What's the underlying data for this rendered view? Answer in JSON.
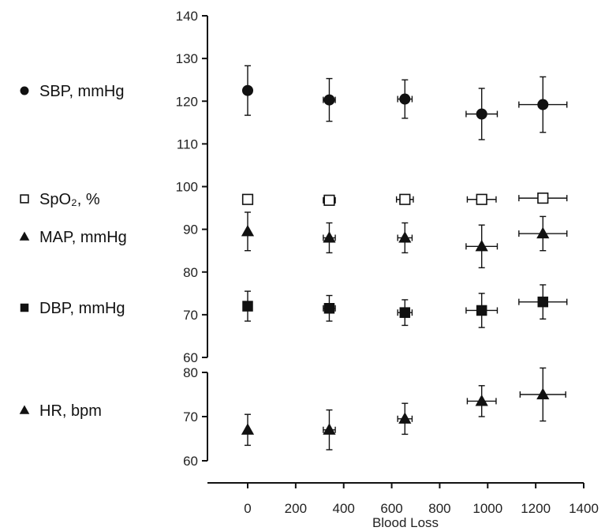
{
  "chart_data": {
    "type": "scatter",
    "title": "",
    "xlabel": "Blood Loss",
    "x_ticks": [
      "0",
      "200",
      "400",
      "600",
      "800",
      "1000",
      "1200",
      "1400"
    ],
    "xlim": [
      0,
      1400
    ],
    "grid": false,
    "legend_placement": "left",
    "panels": [
      {
        "name": "upper",
        "ylim": [
          60,
          140
        ],
        "y_ticks": [
          "60",
          "70",
          "80",
          "90",
          "100",
          "110",
          "120",
          "130",
          "140"
        ],
        "series": [
          {
            "name": "SBP, mmHg",
            "marker": "circle-filled",
            "x": [
              0,
              340,
              655,
              975,
              1230
            ],
            "y": [
              122.5,
              120.3,
              120.5,
              117,
              119.2
            ],
            "y_err": [
              5.8,
              5.0,
              4.5,
              6.0,
              6.5
            ],
            "x_err": [
              0,
              25,
              30,
              65,
              100
            ]
          },
          {
            "name": "SpO₂, %",
            "marker": "square-open",
            "x": [
              0,
              340,
              655,
              975,
              1230
            ],
            "y": [
              97,
              96.8,
              97,
              97,
              97.3
            ],
            "y_err": [
              0,
              0,
              0,
              0,
              0
            ],
            "x_err": [
              0,
              25,
              35,
              60,
              100
            ]
          },
          {
            "name": "MAP, mmHg",
            "marker": "triangle-filled",
            "x": [
              0,
              340,
              655,
              975,
              1230
            ],
            "y": [
              89.5,
              88,
              88,
              86,
              89
            ],
            "y_err": [
              4.5,
              3.5,
              3.5,
              5.0,
              4.0
            ],
            "x_err": [
              0,
              25,
              30,
              65,
              100
            ]
          },
          {
            "name": "DBP, mmHg",
            "marker": "square-filled",
            "x": [
              0,
              340,
              655,
              975,
              1230
            ],
            "y": [
              72,
              71.5,
              70.5,
              71,
              73
            ],
            "y_err": [
              3.5,
              3.0,
              3.0,
              4.0,
              4.0
            ],
            "x_err": [
              0,
              25,
              30,
              65,
              100
            ]
          }
        ]
      },
      {
        "name": "lower",
        "ylim": [
          60,
          80
        ],
        "y_ticks": [
          "60",
          "70",
          "80"
        ],
        "series": [
          {
            "name": "HR, bpm",
            "marker": "triangle-filled",
            "x": [
              0,
              340,
              655,
              975,
              1230
            ],
            "y": [
              67,
              67,
              69.5,
              73.5,
              75
            ],
            "y_err": [
              3.5,
              4.5,
              3.5,
              3.5,
              6.0
            ],
            "x_err": [
              0,
              25,
              30,
              60,
              95
            ]
          }
        ]
      }
    ]
  }
}
